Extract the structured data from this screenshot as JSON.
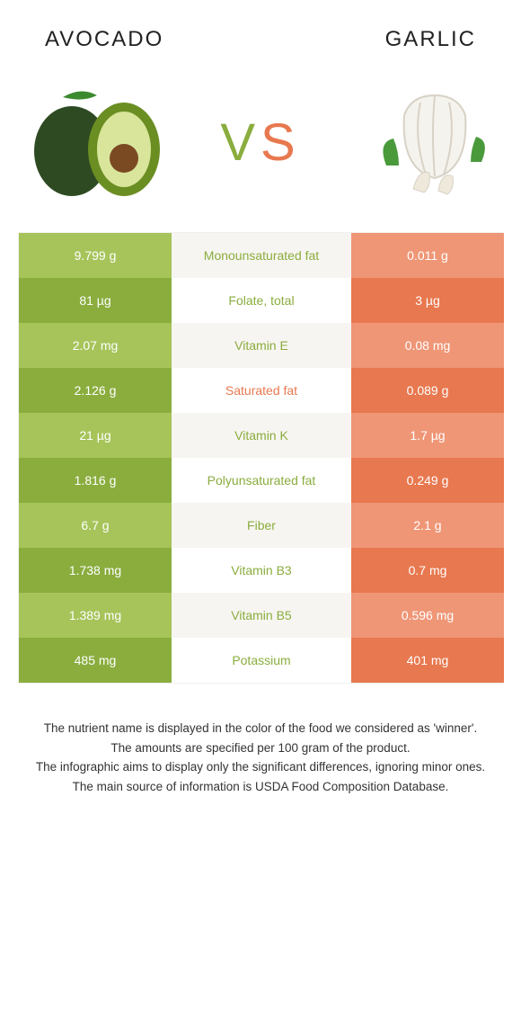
{
  "colors": {
    "left": "#8aad3e",
    "left_alt": "#a6c45a",
    "right": "#e8784f",
    "right_alt": "#ef9676",
    "mid": "#ffffff",
    "mid_alt": "#f7f5f1",
    "winner_left_text": "#8aad3e",
    "winner_right_text": "#e8784f"
  },
  "header": {
    "left_title": "Avocado",
    "right_title": "Garlic",
    "vs_v": "V",
    "vs_s": "S"
  },
  "rows": [
    {
      "label": "Monounsaturated fat",
      "left": "9.799 g",
      "right": "0.011 g",
      "winner": "left"
    },
    {
      "label": "Folate, total",
      "left": "81 µg",
      "right": "3 µg",
      "winner": "left"
    },
    {
      "label": "Vitamin E",
      "left": "2.07 mg",
      "right": "0.08 mg",
      "winner": "left"
    },
    {
      "label": "Saturated fat",
      "left": "2.126 g",
      "right": "0.089 g",
      "winner": "right"
    },
    {
      "label": "Vitamin K",
      "left": "21 µg",
      "right": "1.7 µg",
      "winner": "left"
    },
    {
      "label": "Polyunsaturated fat",
      "left": "1.816 g",
      "right": "0.249 g",
      "winner": "left"
    },
    {
      "label": "Fiber",
      "left": "6.7 g",
      "right": "2.1 g",
      "winner": "left"
    },
    {
      "label": "Vitamin B3",
      "left": "1.738 mg",
      "right": "0.7 mg",
      "winner": "left"
    },
    {
      "label": "Vitamin B5",
      "left": "1.389 mg",
      "right": "0.596 mg",
      "winner": "left"
    },
    {
      "label": "Potassium",
      "left": "485 mg",
      "right": "401 mg",
      "winner": "left"
    }
  ],
  "footnotes": [
    "The nutrient name is displayed in the color of the food we considered as 'winner'.",
    "The amounts are specified per 100 gram of the product.",
    "The infographic aims to display only the significant differences, ignoring minor ones.",
    "The main source of information is USDA Food Composition Database."
  ]
}
